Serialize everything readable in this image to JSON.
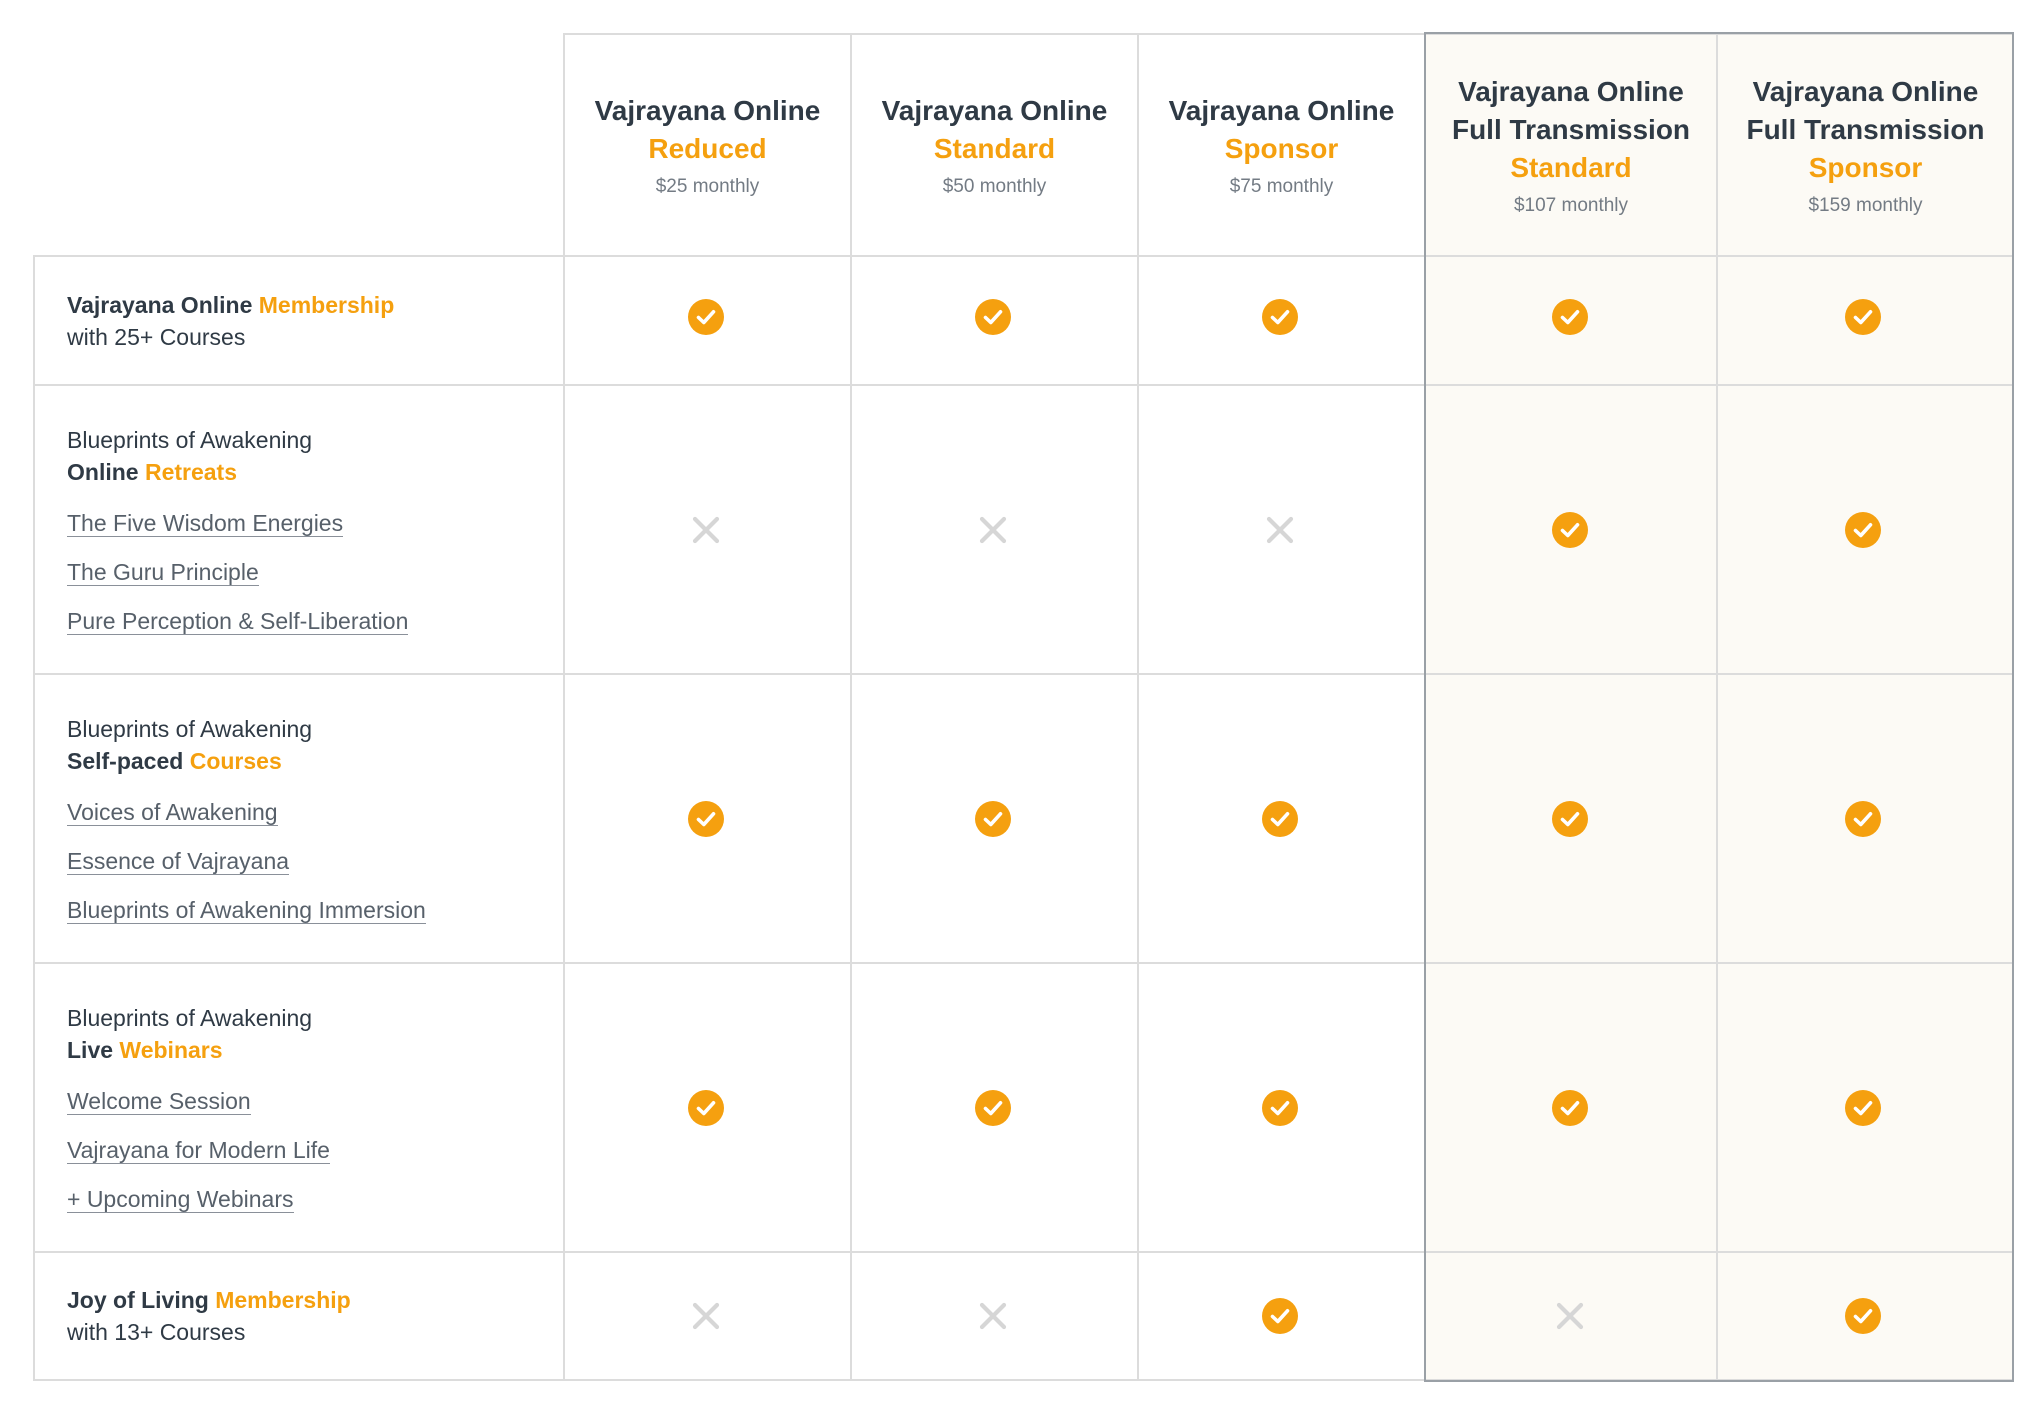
{
  "plans": [
    {
      "name": "Vajrayana Online",
      "tier": "Reduced",
      "price": "$25 monthly"
    },
    {
      "name": "Vajrayana Online",
      "tier": "Standard",
      "price": "$50 monthly"
    },
    {
      "name": "Vajrayana Online",
      "tier": "Sponsor",
      "price": "$75 monthly"
    },
    {
      "name": "Vajrayana Online",
      "name2": "Full Transmission",
      "tier": "Standard",
      "price": "$107 monthly"
    },
    {
      "name": "Vajrayana Online",
      "name2": "Full Transmission",
      "tier": "Sponsor",
      "price": "$159 monthly"
    }
  ],
  "features": [
    {
      "line1": "Vajrayana Online",
      "line1_accent": "Membership",
      "line2": "with 25+ Courses",
      "items": [],
      "included": [
        true,
        true,
        true,
        true,
        true
      ]
    },
    {
      "line1": "Blueprints of Awakening",
      "line2": "Online",
      "line2_accent": "Retreats",
      "items": [
        "The Five Wisdom Energies",
        "The Guru Principle",
        "Pure Perception & Self-Liberation"
      ],
      "included": [
        false,
        false,
        false,
        true,
        true
      ]
    },
    {
      "line1": "Blueprints of Awakening",
      "line2": "Self-paced",
      "line2_accent": "Courses",
      "items": [
        "Voices of Awakening",
        "Essence of Vajrayana",
        "Blueprints of Awakening Immersion"
      ],
      "included": [
        true,
        true,
        true,
        true,
        true
      ]
    },
    {
      "line1": "Blueprints of Awakening",
      "line2": "Live",
      "line2_accent": "Webinars",
      "items": [
        "Welcome Session",
        "Vajrayana for Modern Life",
        "+ Upcoming Webinars"
      ],
      "included": [
        true,
        true,
        true,
        true,
        true
      ]
    },
    {
      "line1": "Joy of Living",
      "line1_accent": "Membership",
      "line2": "with 13+ Courses",
      "items": [],
      "included": [
        false,
        false,
        true,
        false,
        true
      ]
    }
  ],
  "colors": {
    "accent": "#f5a00f",
    "cross": "#d6d6d6",
    "highlight_bg": "#fcfaf5",
    "border": "#dcdcdc",
    "highlight_border": "#9aa0a6"
  },
  "icons": {
    "included": "check-circle-icon",
    "excluded": "x-icon"
  }
}
